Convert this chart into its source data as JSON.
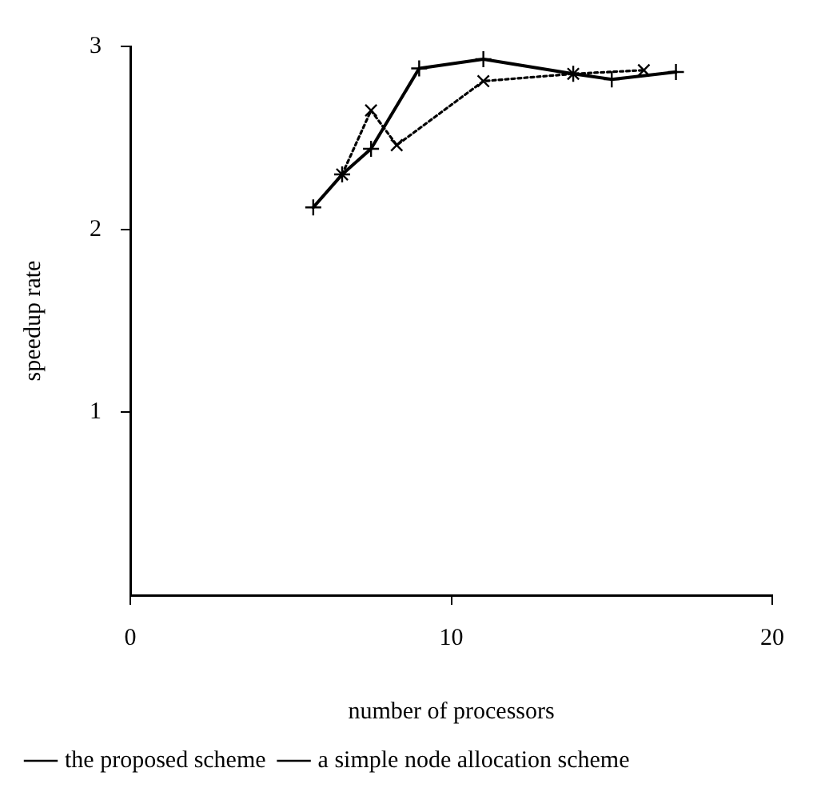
{
  "chart_data": {
    "type": "line",
    "xlabel": "number of processors",
    "ylabel": "speedup rate",
    "xlim": [
      0,
      20
    ],
    "ylim": [
      0,
      3
    ],
    "xticks": [
      0,
      10,
      20
    ],
    "yticks": [
      1,
      2,
      3
    ],
    "grid": false,
    "legend": "bottom",
    "marker": "cross",
    "series": [
      {
        "name": "the proposed scheme",
        "color": "#000000",
        "line_style": "solid",
        "x": [
          5.7,
          6.6,
          7.5,
          9.0,
          11.0,
          13.8,
          15.0,
          17.0
        ],
        "values": [
          2.12,
          2.3,
          2.44,
          2.88,
          2.93,
          2.85,
          2.82,
          2.86
        ]
      },
      {
        "name": "a simple node allocation scheme",
        "color": "#000000",
        "line_style": "dotted",
        "x": [
          6.6,
          7.5,
          8.3,
          11.0,
          13.8,
          16.0
        ],
        "values": [
          2.3,
          2.65,
          2.46,
          2.81,
          2.85,
          2.87
        ]
      }
    ]
  }
}
